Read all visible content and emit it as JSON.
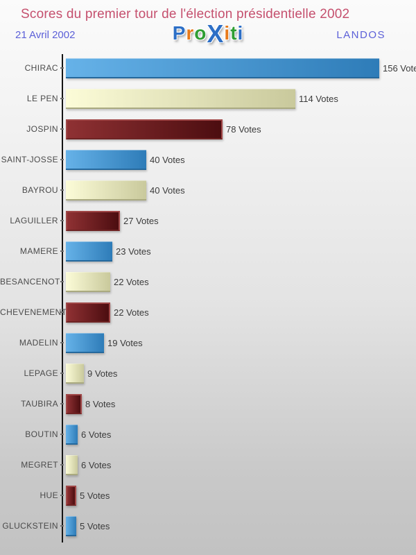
{
  "header": {
    "title": "Scores du premier tour de l'élection présidentielle 2002",
    "date": "21 Avril 2002",
    "location": "LANDOS",
    "logo_name": "Proxiti",
    "logo_letters": [
      {
        "char": "P",
        "color": "#2d6fc6",
        "large": false
      },
      {
        "char": "r",
        "color": "#e87a1a",
        "large": false
      },
      {
        "char": "o",
        "color": "#2f9e33",
        "large": false
      },
      {
        "char": "X",
        "color": "#2d6fc6",
        "large": true
      },
      {
        "char": "i",
        "color": "#e87a1a",
        "large": false
      },
      {
        "char": "t",
        "color": "#2f9e33",
        "large": false
      },
      {
        "char": "i",
        "color": "#2d6fc6",
        "large": false
      }
    ]
  },
  "chart_data": {
    "type": "bar",
    "orientation": "horizontal",
    "title": "Scores du premier tour de l'élection présidentielle 2002",
    "categories": [
      "CHIRAC",
      "LE PEN",
      "JOSPIN",
      "SAINT-JOSSE",
      "BAYROU",
      "LAGUILLER",
      "MAMERE",
      "BESANCENOT",
      "CHEVENEMENT",
      "MADELIN",
      "LEPAGE",
      "TAUBIRA",
      "BOUTIN",
      "MEGRET",
      "HUE",
      "GLUCKSTEIN"
    ],
    "values": [
      156,
      114,
      78,
      40,
      40,
      27,
      23,
      22,
      22,
      19,
      9,
      8,
      6,
      6,
      5,
      5
    ],
    "value_suffix": "Votes",
    "xlim": [
      0,
      170
    ],
    "grid": false,
    "legend": null,
    "bar_color_cycle": [
      "blue",
      "cream",
      "darkred"
    ],
    "palette": {
      "blue": [
        "#66b2e8",
        "#2e7cb8"
      ],
      "cream": [
        "#fcfcd8",
        "#c9c99c"
      ],
      "darkred": [
        "#8f3133",
        "#4c0d10"
      ],
      "title_color": "#c5506e",
      "subtitle_color": "#5c60d8",
      "label_color": "#4a4a4a",
      "axis_color": "#151515"
    }
  }
}
